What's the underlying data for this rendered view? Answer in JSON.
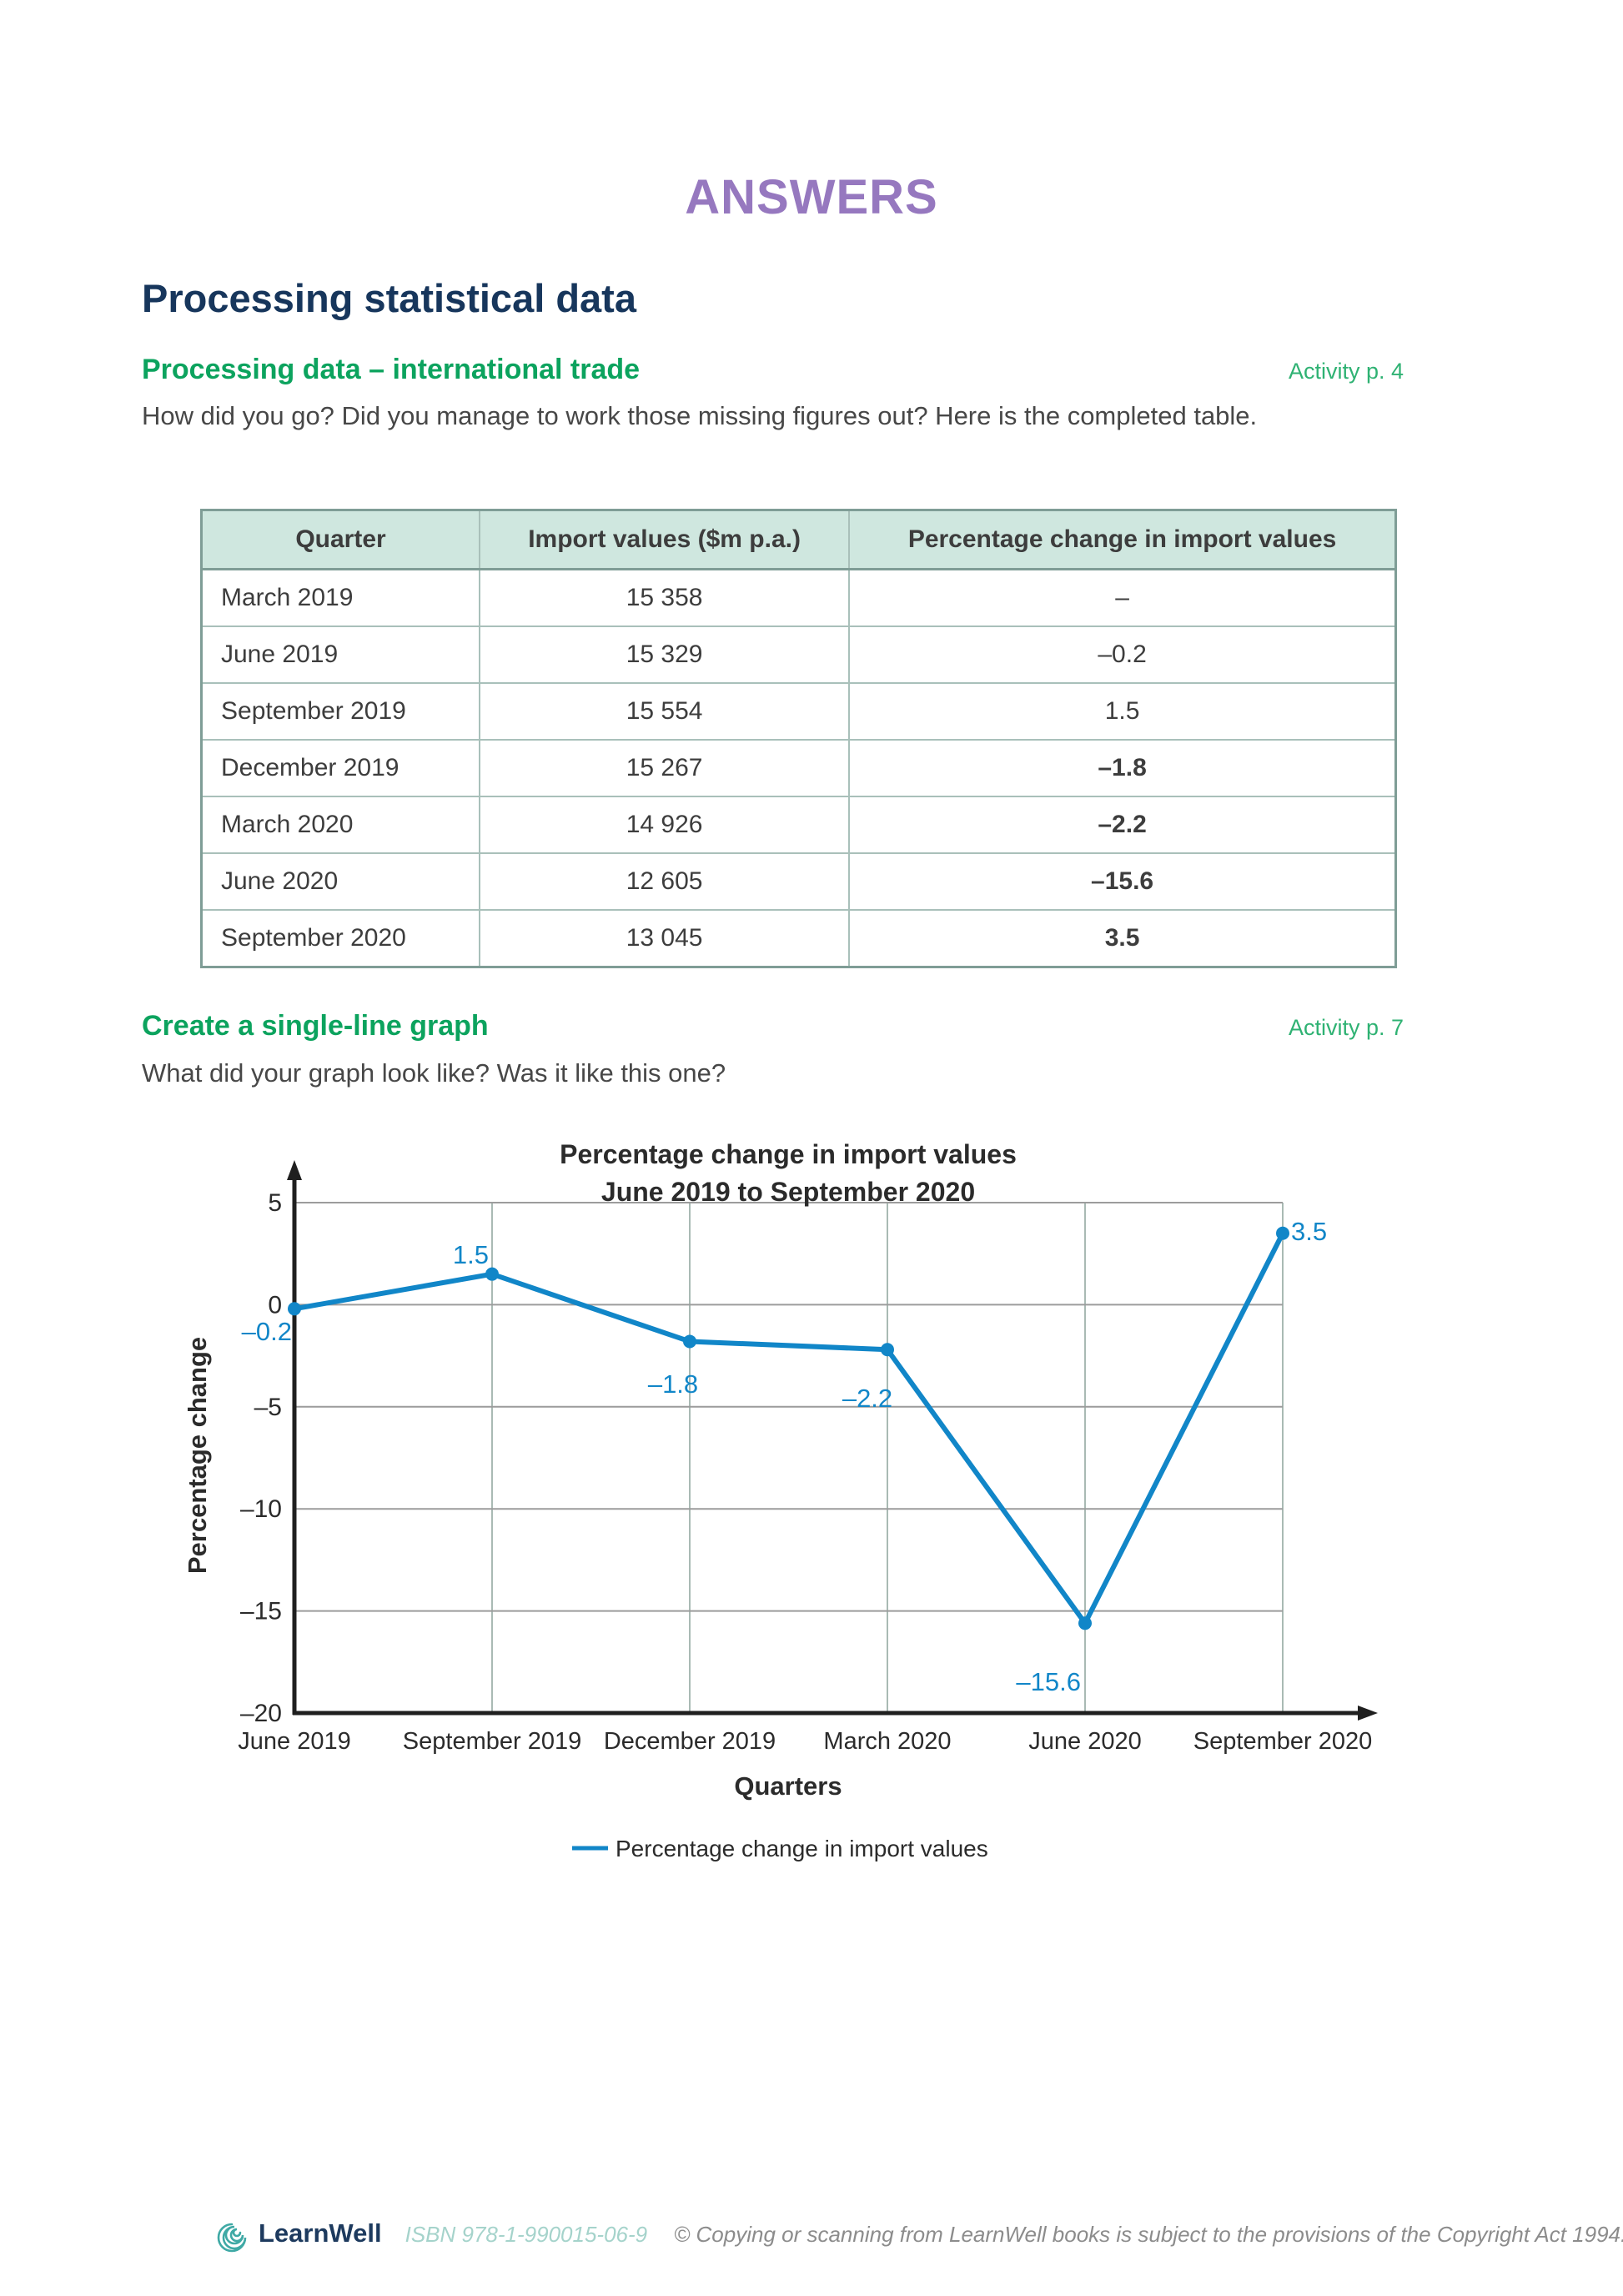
{
  "page": {
    "title": "ANSWERS",
    "section_title": "Processing statistical data"
  },
  "sections": [
    {
      "heading": "Processing data – international trade",
      "activity": "Activity p. 4",
      "paragraph": "How did you go? Did you manage to work those missing figures out? Here is the completed table."
    },
    {
      "heading": "Create a single-line graph",
      "activity": "Activity p. 7",
      "paragraph": "What did your graph look like? Was it like this one?"
    }
  ],
  "table": {
    "headers": [
      "Quarter",
      "Import values ($m p.a.)",
      "Percentage change in import values"
    ],
    "rows": [
      {
        "quarter": "March 2019",
        "import_value": "15 358",
        "change": "–",
        "bold": false
      },
      {
        "quarter": "June 2019",
        "import_value": "15 329",
        "change": "–0.2",
        "bold": false
      },
      {
        "quarter": "September 2019",
        "import_value": "15 554",
        "change": "1.5",
        "bold": false
      },
      {
        "quarter": "December 2019",
        "import_value": "15 267",
        "change": "–1.8",
        "bold": true
      },
      {
        "quarter": "March 2020",
        "import_value": "14 926",
        "change": "–2.2",
        "bold": true
      },
      {
        "quarter": "June 2020",
        "import_value": "12 605",
        "change": "–15.6",
        "bold": true
      },
      {
        "quarter": "September 2020",
        "import_value": "13 045",
        "change": "3.5",
        "bold": true
      }
    ]
  },
  "chart_data": {
    "type": "line",
    "title": "Percentage change in import values",
    "subtitle": "June 2019 to September 2020",
    "categories": [
      "June 2019",
      "September 2019",
      "December 2019",
      "March 2020",
      "June 2020",
      "September 2020"
    ],
    "values": [
      -0.2,
      1.5,
      -1.8,
      -2.2,
      -15.6,
      3.5
    ],
    "point_labels": [
      "–0.2",
      "1.5",
      "–1.8",
      "–2.2",
      "–15.6",
      "3.5"
    ],
    "xlabel": "Quarters",
    "ylabel": "Percentage change",
    "ylim": [
      -20,
      5
    ],
    "ytick_step": 5,
    "ytick_labels": [
      "5",
      "0",
      "–5",
      "–10",
      "–15",
      "–20"
    ],
    "legend_label": "Percentage change in import values",
    "legend_position": "bottom",
    "grid": true,
    "line_color": "#1186c8"
  },
  "colors": {
    "accent_purple": "#9678bf",
    "navy": "#17365c",
    "green_heading": "#0ca35e",
    "table_header_bg": "#cfe7df",
    "chart_line": "#1186c8",
    "grid_h": "#9c9c9c",
    "grid_v": "#a9bab4",
    "axis": "#1f1f1f"
  },
  "footer": {
    "brand": "LearnWell",
    "isbn": "ISBN 978-1-990015-06-9",
    "copyright": "© Copying or scanning from LearnWell books is subject to the provisions of the Copyright Act 1994."
  }
}
